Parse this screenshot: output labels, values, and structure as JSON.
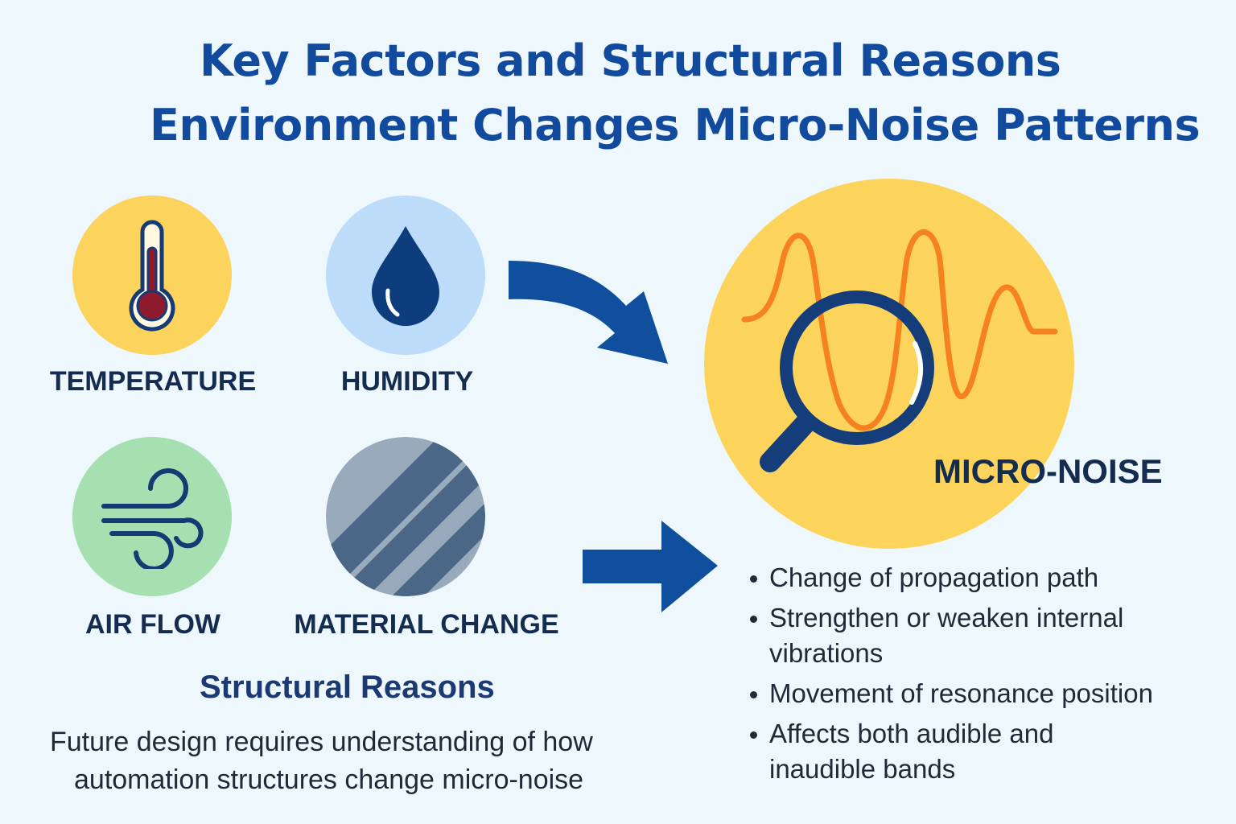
{
  "title": {
    "line1": "Key Factors and Structural Reasons",
    "line2": "Environment Changes Micro-Noise Patterns"
  },
  "factors": [
    {
      "label": "TEMPERATURE",
      "icon": "thermometer-icon"
    },
    {
      "label": "HUMIDITY",
      "icon": "water-drop-icon"
    },
    {
      "label": "AIR FLOW",
      "icon": "wind-icon"
    },
    {
      "label": "MATERIAL CHANGE",
      "icon": "material-stripes-icon"
    }
  ],
  "micro_noise": {
    "label": "MICRO-NOISE",
    "icon": "magnifier-waveform-icon",
    "effects": [
      "Change of propagation path",
      "Strengthen or weaken internal vibrations",
      "Movement of resonance position",
      "Affects both audible and inaudible bands"
    ]
  },
  "structural": {
    "heading": "Structural Reasons",
    "description_line1": "Future design requires understanding of how",
    "description_line2": "automation structures change micro-noise"
  },
  "colors": {
    "title": "#124a9e",
    "arrow": "#0f4f9e",
    "temperature_bg": "#fcd35c",
    "humidity_bg": "#bcdcfa",
    "airflow_bg": "#a6dfb0",
    "material_bg": "#98aabb",
    "micro_noise_bg": "#fcd45c",
    "waveform": "#f5821f",
    "magnifier": "#153d7a"
  }
}
